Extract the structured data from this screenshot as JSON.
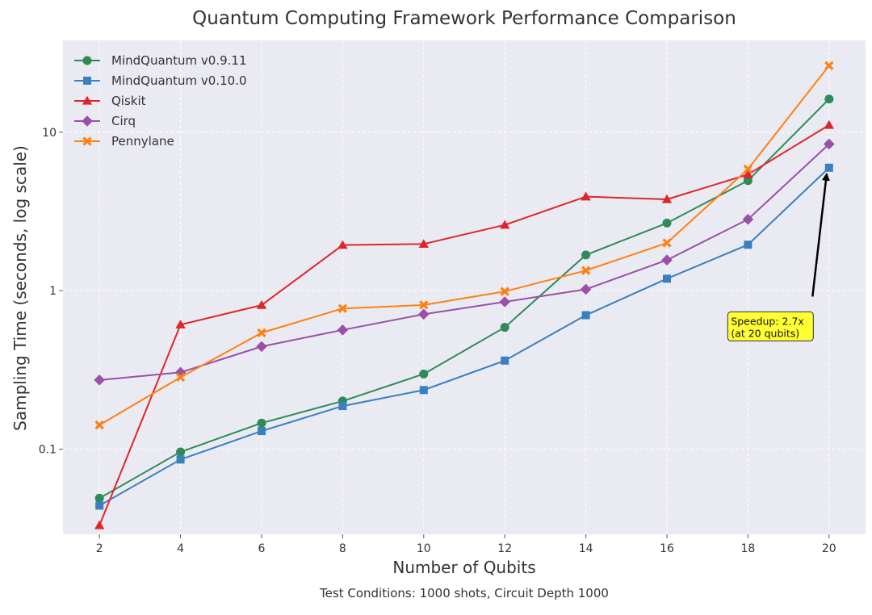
{
  "chart_data": {
    "type": "line",
    "title": "Quantum Computing Framework Performance Comparison",
    "xlabel": "Number of Qubits",
    "ylabel": "Sampling Time (seconds, log scale)",
    "yscale": "log",
    "xlim": [
      1.1,
      20.9
    ],
    "ylim": [
      0.029,
      38
    ],
    "grid": true,
    "legend_location": "upper-left",
    "x": [
      2,
      4,
      6,
      8,
      10,
      12,
      14,
      16,
      18,
      20
    ],
    "x_ticks": [
      2,
      4,
      6,
      8,
      10,
      12,
      14,
      16,
      18,
      20
    ],
    "y_ticks": [
      {
        "value": 0.1,
        "label": "0.1"
      },
      {
        "value": 1,
        "label": "1"
      },
      {
        "value": 10,
        "label": "10"
      }
    ],
    "series": [
      {
        "name": "MindQuantum v0.9.11",
        "color": "#2e8b57",
        "marker": "circle",
        "values": [
          0.049,
          0.096,
          0.146,
          0.201,
          0.298,
          0.587,
          1.68,
          2.67,
          4.95,
          16.2
        ]
      },
      {
        "name": "MindQuantum v0.10.0",
        "color": "#3a7fbe",
        "marker": "square",
        "values": [
          0.044,
          0.086,
          0.13,
          0.187,
          0.236,
          0.362,
          0.7,
          1.19,
          1.95,
          5.97
        ]
      },
      {
        "name": "Qiskit",
        "color": "#e0252a",
        "marker": "triangle",
        "values": [
          0.033,
          0.61,
          0.81,
          1.94,
          1.97,
          2.6,
          3.92,
          3.77,
          5.41,
          11.1
        ]
      },
      {
        "name": "Cirq",
        "color": "#9a50a8",
        "marker": "diamond",
        "values": [
          0.273,
          0.305,
          0.444,
          0.565,
          0.71,
          0.85,
          1.02,
          1.56,
          2.82,
          8.42
        ]
      },
      {
        "name": "Pennylane",
        "color": "#ff8012",
        "marker": "x",
        "values": [
          0.142,
          0.284,
          0.542,
          0.772,
          0.812,
          0.988,
          1.34,
          2.0,
          5.85,
          26.3
        ]
      }
    ],
    "annotation": {
      "text_lines": [
        "Speedup: 2.7x",
        "(at 20 qubits)"
      ],
      "target_x": 20,
      "target_y": 5.97,
      "text_x": 17.5,
      "text_y": 0.77,
      "box_color": "#ffff33",
      "arrow_color": "#000000"
    },
    "footnote": "Test Conditions: 1000 shots, Circuit Depth 1000"
  }
}
